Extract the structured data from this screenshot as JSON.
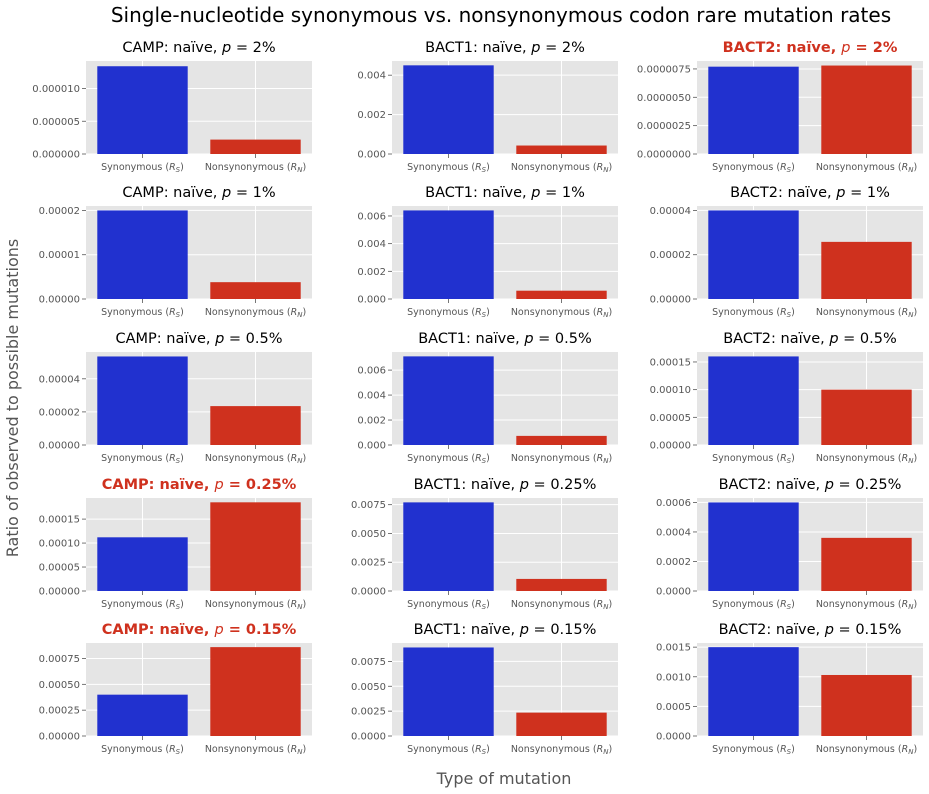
{
  "figure": {
    "title": "Single-nucleotide synonymous vs. nonsynonymous codon rare mutation rates",
    "ylabel": "Ratio of observed to possible mutations",
    "xlabel": "Type of mutation"
  },
  "colors": {
    "synonymous": "#2131cf",
    "nonsynonymous": "#cf311e",
    "highlight_title": "#cf311e",
    "panel_bg": "#e5e5e5",
    "grid": "#ffffff",
    "tick_text": "#555555"
  },
  "chart_data": [
    {
      "type": "bar",
      "title_prefix": "CAMP: naïve, ",
      "title_var": "p",
      "title_suffix": " = 2%",
      "highlight": false,
      "categories": [
        "Synonymous (R_S)",
        "Nonsynonymous (R_N)"
      ],
      "values": [
        1.34e-05,
        2.2e-06
      ],
      "ylim": [
        0,
        1.42e-05
      ],
      "yticks": [
        0,
        5e-06,
        1e-05
      ],
      "ytick_labels": [
        "0.000000",
        "0.000005",
        "0.000010"
      ]
    },
    {
      "type": "bar",
      "title_prefix": "BACT1: naïve, ",
      "title_var": "p",
      "title_suffix": " = 2%",
      "highlight": false,
      "categories": [
        "Synonymous (R_S)",
        "Nonsynonymous (R_N)"
      ],
      "values": [
        0.0045,
        0.00043
      ],
      "ylim": [
        0,
        0.00472
      ],
      "yticks": [
        0,
        0.002,
        0.004
      ],
      "ytick_labels": [
        "0.000",
        "0.002",
        "0.004"
      ]
    },
    {
      "type": "bar",
      "title_prefix": "BACT2: naïve, ",
      "title_var": "p",
      "title_suffix": " = 2%",
      "highlight": true,
      "categories": [
        "Synonymous (R_S)",
        "Nonsynonymous (R_N)"
      ],
      "values": [
        7.7e-06,
        7.8e-06
      ],
      "ylim": [
        0,
        8.2e-06
      ],
      "yticks": [
        0,
        2.5e-06,
        5e-06,
        7.5e-06
      ],
      "ytick_labels": [
        "0.0000000",
        "0.0000025",
        "0.0000050",
        "0.0000075"
      ]
    },
    {
      "type": "bar",
      "title_prefix": "CAMP: naïve, ",
      "title_var": "p",
      "title_suffix": " = 1%",
      "highlight": false,
      "categories": [
        "Synonymous (R_S)",
        "Nonsynonymous (R_N)"
      ],
      "values": [
        2e-05,
        3.8e-06
      ],
      "ylim": [
        0,
        2.1e-05
      ],
      "yticks": [
        0,
        1e-05,
        2e-05
      ],
      "ytick_labels": [
        "0.00000",
        "0.00001",
        "0.00002"
      ]
    },
    {
      "type": "bar",
      "title_prefix": "BACT1: naïve, ",
      "title_var": "p",
      "title_suffix": " = 1%",
      "highlight": false,
      "categories": [
        "Synonymous (R_S)",
        "Nonsynonymous (R_N)"
      ],
      "values": [
        0.0064,
        0.0006
      ],
      "ylim": [
        0,
        0.00672
      ],
      "yticks": [
        0,
        0.002,
        0.004,
        0.006
      ],
      "ytick_labels": [
        "0.000",
        "0.002",
        "0.004",
        "0.006"
      ]
    },
    {
      "type": "bar",
      "title_prefix": "BACT2: naïve, ",
      "title_var": "p",
      "title_suffix": " = 1%",
      "highlight": false,
      "categories": [
        "Synonymous (R_S)",
        "Nonsynonymous (R_N)"
      ],
      "values": [
        4e-05,
        2.58e-05
      ],
      "ylim": [
        0,
        4.2e-05
      ],
      "yticks": [
        0,
        2e-05,
        4e-05
      ],
      "ytick_labels": [
        "0.00000",
        "0.00002",
        "0.00004"
      ]
    },
    {
      "type": "bar",
      "title_prefix": "CAMP: naïve, ",
      "title_var": "p",
      "title_suffix": " = 0.5%",
      "highlight": false,
      "categories": [
        "Synonymous (R_S)",
        "Nonsynonymous (R_N)"
      ],
      "values": [
        5.35e-05,
        2.35e-05
      ],
      "ylim": [
        0,
        5.62e-05
      ],
      "yticks": [
        0,
        2e-05,
        4e-05
      ],
      "ytick_labels": [
        "0.00000",
        "0.00002",
        "0.00004"
      ]
    },
    {
      "type": "bar",
      "title_prefix": "BACT1: naïve, ",
      "title_var": "p",
      "title_suffix": " = 0.5%",
      "highlight": false,
      "categories": [
        "Synonymous (R_S)",
        "Nonsynonymous (R_N)"
      ],
      "values": [
        0.0071,
        0.00073
      ],
      "ylim": [
        0,
        0.00745
      ],
      "yticks": [
        0,
        0.002,
        0.004,
        0.006
      ],
      "ytick_labels": [
        "0.000",
        "0.002",
        "0.004",
        "0.006"
      ]
    },
    {
      "type": "bar",
      "title_prefix": "BACT2: naïve, ",
      "title_var": "p",
      "title_suffix": " = 0.5%",
      "highlight": false,
      "categories": [
        "Synonymous (R_S)",
        "Nonsynonymous (R_N)"
      ],
      "values": [
        0.00016,
        0.0001
      ],
      "ylim": [
        0,
        0.000168
      ],
      "yticks": [
        0,
        5e-05,
        0.0001,
        0.00015
      ],
      "ytick_labels": [
        "0.00000",
        "0.00005",
        "0.00010",
        "0.00015"
      ]
    },
    {
      "type": "bar",
      "title_prefix": "CAMP: naïve, ",
      "title_var": "p",
      "title_suffix": " = 0.25%",
      "highlight": true,
      "categories": [
        "Synonymous (R_S)",
        "Nonsynonymous (R_N)"
      ],
      "values": [
        0.000112,
        0.000185
      ],
      "ylim": [
        0,
        0.000194
      ],
      "yticks": [
        0,
        5e-05,
        0.0001,
        0.00015
      ],
      "ytick_labels": [
        "0.00000",
        "0.00005",
        "0.00010",
        "0.00015"
      ]
    },
    {
      "type": "bar",
      "title_prefix": "BACT1: naïve, ",
      "title_var": "p",
      "title_suffix": " = 0.25%",
      "highlight": false,
      "categories": [
        "Synonymous (R_S)",
        "Nonsynonymous (R_N)"
      ],
      "values": [
        0.0077,
        0.00105
      ],
      "ylim": [
        0,
        0.00808
      ],
      "yticks": [
        0,
        0.0025,
        0.005,
        0.0075
      ],
      "ytick_labels": [
        "0.0000",
        "0.0025",
        "0.0050",
        "0.0075"
      ]
    },
    {
      "type": "bar",
      "title_prefix": "BACT2: naïve, ",
      "title_var": "p",
      "title_suffix": " = 0.25%",
      "highlight": false,
      "categories": [
        "Synonymous (R_S)",
        "Nonsynonymous (R_N)"
      ],
      "values": [
        0.0006,
        0.00036
      ],
      "ylim": [
        0,
        0.00063
      ],
      "yticks": [
        0,
        0.0002,
        0.0004,
        0.0006
      ],
      "ytick_labels": [
        "0.0000",
        "0.0002",
        "0.0004",
        "0.0006"
      ]
    },
    {
      "type": "bar",
      "title_prefix": "CAMP: naïve, ",
      "title_var": "p",
      "title_suffix": " = 0.15%",
      "highlight": true,
      "categories": [
        "Synonymous (R_S)",
        "Nonsynonymous (R_N)"
      ],
      "values": [
        0.0004,
        0.00086
      ],
      "ylim": [
        0,
        0.0009
      ],
      "yticks": [
        0,
        0.00025,
        0.0005,
        0.00075
      ],
      "ytick_labels": [
        "0.00000",
        "0.00025",
        "0.00050",
        "0.00075"
      ]
    },
    {
      "type": "bar",
      "title_prefix": "BACT1: naïve, ",
      "title_var": "p",
      "title_suffix": " = 0.15%",
      "highlight": false,
      "categories": [
        "Synonymous (R_S)",
        "Nonsynonymous (R_N)"
      ],
      "values": [
        0.0089,
        0.00235
      ],
      "ylim": [
        0,
        0.00935
      ],
      "yticks": [
        0,
        0.0025,
        0.005,
        0.0075
      ],
      "ytick_labels": [
        "0.0000",
        "0.0025",
        "0.0050",
        "0.0075"
      ]
    },
    {
      "type": "bar",
      "title_prefix": "BACT2: naïve, ",
      "title_var": "p",
      "title_suffix": " = 0.15%",
      "highlight": false,
      "categories": [
        "Synonymous (R_S)",
        "Nonsynonymous (R_N)"
      ],
      "values": [
        0.0015,
        0.00103
      ],
      "ylim": [
        0,
        0.00157
      ],
      "yticks": [
        0,
        0.0005,
        0.001,
        0.0015
      ],
      "ytick_labels": [
        "0.0000",
        "0.0005",
        "0.0010",
        "0.0015"
      ]
    }
  ]
}
